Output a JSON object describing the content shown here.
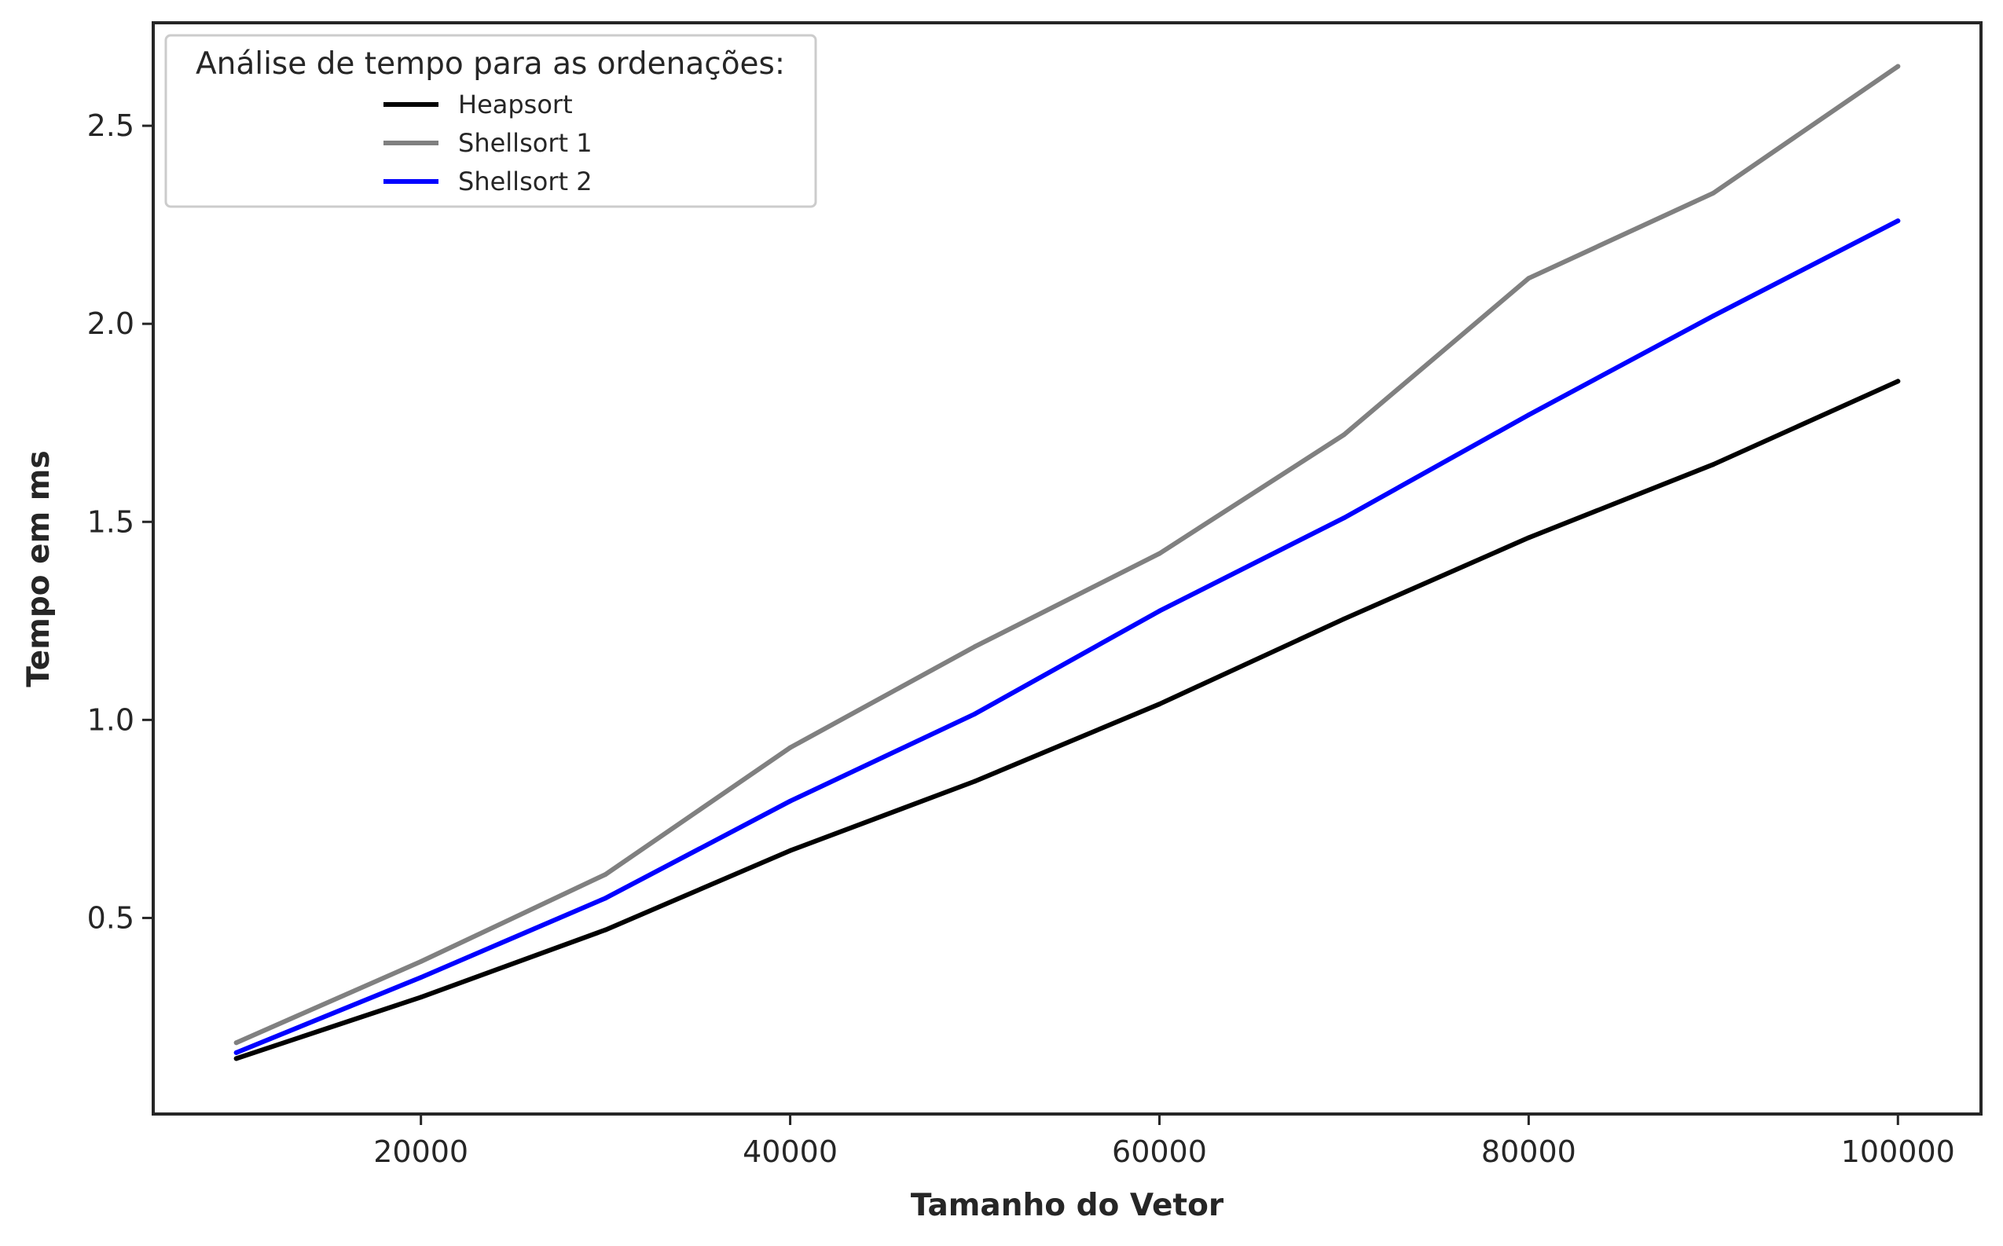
{
  "chart_data": {
    "type": "line",
    "title": "",
    "xlabel": "Tamanho do Vetor",
    "ylabel": "Tempo em ms",
    "xlim": [
      5500,
      104500
    ],
    "ylim": [
      0.005,
      2.76
    ],
    "xticks": [
      20000,
      40000,
      60000,
      80000,
      100000
    ],
    "xtick_labels": [
      "20000",
      "40000",
      "60000",
      "80000",
      "100000"
    ],
    "yticks": [
      0.5,
      1.0,
      1.5,
      2.0,
      2.5
    ],
    "ytick_labels": [
      "0.5",
      "1.0",
      "1.5",
      "2.0",
      "2.5"
    ],
    "grid": false,
    "legend": {
      "title": "Análise de tempo para as ordenações:",
      "placement": "top-left"
    },
    "x": [
      10000,
      20000,
      30000,
      40000,
      50000,
      60000,
      70000,
      80000,
      90000,
      100000
    ],
    "series": [
      {
        "name": "Heapsort",
        "color": "#000000",
        "values": [
          0.145,
          0.3,
          0.47,
          0.67,
          0.845,
          1.04,
          1.255,
          1.46,
          1.645,
          1.855
        ]
      },
      {
        "name": "Shellsort 1",
        "color": "#808080",
        "values": [
          0.185,
          0.39,
          0.61,
          0.93,
          1.185,
          1.42,
          1.72,
          2.115,
          2.33,
          2.65
        ]
      },
      {
        "name": "Shellsort 2",
        "color": "#0000ff",
        "values": [
          0.16,
          0.35,
          0.55,
          0.795,
          1.015,
          1.275,
          1.51,
          1.77,
          2.02,
          2.26
        ]
      }
    ]
  }
}
